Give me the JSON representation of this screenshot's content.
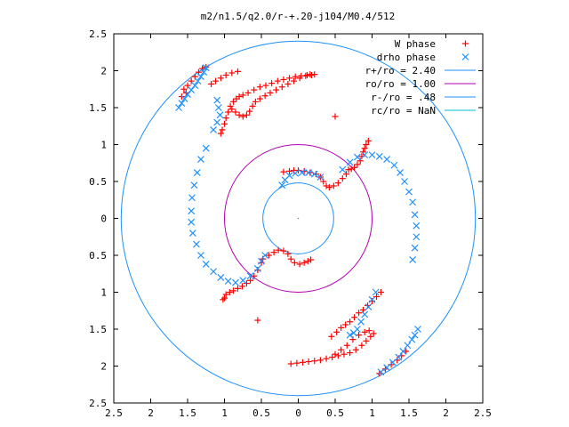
{
  "chart_data": {
    "type": "scatter",
    "title": "m2/n1.5/q2.0/r-+.20-j104/M0.4/512",
    "xlim": [
      -2.5,
      2.5
    ],
    "ylim": [
      -2.5,
      2.5
    ],
    "x_ticks": [
      -2.5,
      -2,
      -1.5,
      -1,
      -0.5,
      0,
      0.5,
      1,
      1.5,
      2,
      2.5
    ],
    "y_ticks": [
      2.5,
      2,
      1.5,
      1,
      0.5,
      0,
      -0.5,
      -1,
      -1.5,
      -2,
      -2.5
    ],
    "x_tick_labels": [
      "2.5",
      "2",
      "1.5",
      "1",
      "0.5",
      "0",
      "0.5",
      "1",
      "1.5",
      "2",
      "2.5"
    ],
    "y_tick_labels": [
      "2.5",
      "2",
      "1.5",
      "1",
      "0.5",
      "0",
      "0.5",
      "1",
      "1.5",
      "2",
      "2.5"
    ],
    "legend_position": "top-right",
    "grid": false,
    "series": [
      {
        "name": "W phase",
        "kind": "points",
        "marker": "plus",
        "color": "#ff0000",
        "points": [
          [
            -1.05,
            1.15
          ],
          [
            -1.03,
            1.2
          ],
          [
            -1.0,
            1.28
          ],
          [
            -0.98,
            1.36
          ],
          [
            -0.95,
            1.44
          ],
          [
            -0.92,
            1.52
          ],
          [
            -0.88,
            1.58
          ],
          [
            -0.84,
            1.62
          ],
          [
            -0.8,
            1.65
          ],
          [
            -0.75,
            1.67
          ],
          [
            -0.68,
            1.7
          ],
          [
            -0.6,
            1.74
          ],
          [
            -0.52,
            1.78
          ],
          [
            -0.44,
            1.8
          ],
          [
            -0.36,
            1.83
          ],
          [
            -0.28,
            1.86
          ],
          [
            -0.2,
            1.88
          ],
          [
            -0.12,
            1.9
          ],
          [
            -0.04,
            1.92
          ],
          [
            0.04,
            1.93
          ],
          [
            0.12,
            1.94
          ],
          [
            0.18,
            1.94
          ],
          [
            0.22,
            1.95
          ],
          [
            -0.9,
            1.48
          ],
          [
            -0.85,
            1.44
          ],
          [
            -0.8,
            1.4
          ],
          [
            -0.75,
            1.38
          ],
          [
            -0.7,
            1.4
          ],
          [
            -0.66,
            1.45
          ],
          [
            -0.62,
            1.52
          ],
          [
            -0.58,
            1.58
          ],
          [
            -0.52,
            1.62
          ],
          [
            -0.45,
            1.66
          ],
          [
            -0.38,
            1.7
          ],
          [
            -0.3,
            1.74
          ],
          [
            -0.22,
            1.78
          ],
          [
            -0.14,
            1.82
          ],
          [
            -0.06,
            1.86
          ],
          [
            0.02,
            1.9
          ],
          [
            0.1,
            1.93
          ],
          [
            0.16,
            1.95
          ],
          [
            -1.18,
            1.82
          ],
          [
            -1.12,
            1.86
          ],
          [
            -1.05,
            1.9
          ],
          [
            -0.98,
            1.94
          ],
          [
            -0.9,
            1.97
          ],
          [
            -0.82,
            1.99
          ],
          [
            -1.55,
            1.75
          ],
          [
            -1.5,
            1.8
          ],
          [
            -1.45,
            1.86
          ],
          [
            -1.4,
            1.92
          ],
          [
            -1.35,
            1.98
          ],
          [
            -1.3,
            2.03
          ],
          [
            -1.25,
            2.05
          ],
          [
            -1.58,
            1.65
          ],
          [
            -1.52,
            1.7
          ],
          [
            0.5,
            1.38
          ],
          [
            0.95,
            1.05
          ],
          [
            0.92,
            1.0
          ],
          [
            0.9,
            0.95
          ],
          [
            0.88,
            0.9
          ],
          [
            0.86,
            0.84
          ],
          [
            0.84,
            0.78
          ],
          [
            0.8,
            0.73
          ],
          [
            0.76,
            0.69
          ],
          [
            0.72,
            0.67
          ],
          [
            0.68,
            0.66
          ],
          [
            0.0,
            0.65
          ],
          [
            0.08,
            0.64
          ],
          [
            0.16,
            0.62
          ],
          [
            0.24,
            0.6
          ],
          [
            0.3,
            0.56
          ],
          [
            0.34,
            0.5
          ],
          [
            0.38,
            0.44
          ],
          [
            0.42,
            0.42
          ],
          [
            0.48,
            0.44
          ],
          [
            0.54,
            0.48
          ],
          [
            0.6,
            0.54
          ],
          [
            0.65,
            0.6
          ],
          [
            -0.2,
            0.63
          ],
          [
            -0.12,
            0.64
          ],
          [
            -0.06,
            0.65
          ],
          [
            -0.48,
            -0.55
          ],
          [
            -0.4,
            -0.5
          ],
          [
            -0.33,
            -0.46
          ],
          [
            -0.27,
            -0.43
          ],
          [
            -0.2,
            -0.44
          ],
          [
            -0.14,
            -0.48
          ],
          [
            -0.1,
            -0.55
          ],
          [
            -0.05,
            -0.6
          ],
          [
            0.02,
            -0.62
          ],
          [
            0.08,
            -0.6
          ],
          [
            0.13,
            -0.58
          ],
          [
            0.17,
            -0.56
          ],
          [
            -0.5,
            -0.6
          ],
          [
            -0.55,
            -0.7
          ],
          [
            -0.6,
            -0.78
          ],
          [
            -0.65,
            -0.84
          ],
          [
            -0.7,
            -0.88
          ],
          [
            -0.76,
            -0.92
          ],
          [
            -0.82,
            -0.95
          ],
          [
            -0.88,
            -0.98
          ],
          [
            -0.93,
            -1.0
          ],
          [
            -0.98,
            -1.03
          ],
          [
            -1.0,
            -1.08
          ],
          [
            -1.02,
            -1.1
          ],
          [
            -0.55,
            -1.38
          ],
          [
            -0.1,
            -1.97
          ],
          [
            -0.02,
            -1.96
          ],
          [
            0.06,
            -1.95
          ],
          [
            0.14,
            -1.94
          ],
          [
            0.22,
            -1.93
          ],
          [
            0.3,
            -1.92
          ],
          [
            0.38,
            -1.9
          ],
          [
            0.46,
            -1.88
          ],
          [
            0.54,
            -1.86
          ],
          [
            0.62,
            -1.84
          ],
          [
            0.7,
            -1.82
          ],
          [
            0.78,
            -1.78
          ],
          [
            0.86,
            -1.72
          ],
          [
            0.92,
            -1.66
          ],
          [
            0.98,
            -1.6
          ],
          [
            1.02,
            -1.56
          ],
          [
            0.5,
            -1.84
          ],
          [
            0.58,
            -1.78
          ],
          [
            0.66,
            -1.72
          ],
          [
            0.74,
            -1.64
          ],
          [
            0.82,
            -1.58
          ],
          [
            0.9,
            -1.54
          ],
          [
            0.96,
            -1.52
          ],
          [
            0.45,
            -1.6
          ],
          [
            0.52,
            -1.54
          ],
          [
            0.58,
            -1.48
          ],
          [
            0.64,
            -1.44
          ],
          [
            0.7,
            -1.4
          ],
          [
            0.76,
            -1.34
          ],
          [
            0.82,
            -1.28
          ],
          [
            0.88,
            -1.24
          ],
          [
            0.94,
            -1.18
          ],
          [
            1.0,
            -1.12
          ],
          [
            1.06,
            -1.06
          ],
          [
            1.12,
            -1.0
          ],
          [
            1.1,
            -2.1
          ],
          [
            1.18,
            -2.04
          ],
          [
            1.26,
            -1.98
          ],
          [
            1.34,
            -1.92
          ],
          [
            1.4,
            -1.86
          ],
          [
            1.46,
            -1.8
          ]
        ]
      },
      {
        "name": "drho phase",
        "kind": "points",
        "marker": "cross",
        "color": "#1e90ff",
        "points": [
          [
            -1.62,
            1.5
          ],
          [
            -1.58,
            1.56
          ],
          [
            -1.54,
            1.62
          ],
          [
            -1.5,
            1.68
          ],
          [
            -1.45,
            1.74
          ],
          [
            -1.4,
            1.8
          ],
          [
            -1.36,
            1.86
          ],
          [
            -1.32,
            1.92
          ],
          [
            -1.28,
            1.98
          ],
          [
            -1.25,
            2.04
          ],
          [
            -1.1,
            1.6
          ],
          [
            -1.08,
            1.5
          ],
          [
            -1.06,
            1.4
          ],
          [
            -1.1,
            1.3
          ],
          [
            -1.15,
            1.2
          ],
          [
            -1.25,
            0.95
          ],
          [
            -1.32,
            0.8
          ],
          [
            -1.37,
            0.62
          ],
          [
            -1.41,
            0.45
          ],
          [
            -1.44,
            0.28
          ],
          [
            -1.45,
            0.1
          ],
          [
            -1.45,
            -0.05
          ],
          [
            -1.43,
            -0.2
          ],
          [
            -1.38,
            -0.35
          ],
          [
            -1.32,
            -0.5
          ],
          [
            -1.25,
            -0.62
          ],
          [
            -1.15,
            -0.72
          ],
          [
            -1.05,
            -0.8
          ],
          [
            -0.95,
            -0.85
          ],
          [
            -0.85,
            -0.87
          ],
          [
            -0.75,
            -0.84
          ],
          [
            -0.65,
            -0.78
          ],
          [
            -0.55,
            -0.68
          ],
          [
            -0.5,
            -0.58
          ],
          [
            -0.45,
            -0.5
          ],
          [
            -0.22,
            0.45
          ],
          [
            -0.18,
            0.52
          ],
          [
            -0.12,
            0.58
          ],
          [
            -0.04,
            0.61
          ],
          [
            0.05,
            0.62
          ],
          [
            0.14,
            0.62
          ],
          [
            0.22,
            0.6
          ],
          [
            0.3,
            0.56
          ],
          [
            0.6,
            0.66
          ],
          [
            0.7,
            0.76
          ],
          [
            0.8,
            0.83
          ],
          [
            0.9,
            0.86
          ],
          [
            1.0,
            0.86
          ],
          [
            1.1,
            0.84
          ],
          [
            1.2,
            0.8
          ],
          [
            1.3,
            0.72
          ],
          [
            1.38,
            0.62
          ],
          [
            1.44,
            0.5
          ],
          [
            1.5,
            0.36
          ],
          [
            1.55,
            0.22
          ],
          [
            1.58,
            0.05
          ],
          [
            1.6,
            -0.1
          ],
          [
            1.6,
            -0.25
          ],
          [
            1.58,
            -0.4
          ],
          [
            1.55,
            -0.56
          ],
          [
            1.62,
            -1.5
          ],
          [
            1.58,
            -1.58
          ],
          [
            1.54,
            -1.64
          ],
          [
            1.48,
            -1.72
          ],
          [
            1.42,
            -1.8
          ],
          [
            1.36,
            -1.88
          ],
          [
            1.28,
            -1.95
          ],
          [
            1.2,
            -2.02
          ],
          [
            1.12,
            -2.08
          ],
          [
            1.05,
            -1.0
          ],
          [
            1.0,
            -1.1
          ],
          [
            0.95,
            -1.2
          ],
          [
            0.9,
            -1.3
          ],
          [
            0.85,
            -1.4
          ],
          [
            0.8,
            -1.5
          ],
          [
            0.75,
            -1.55
          ],
          [
            0.7,
            -1.58
          ]
        ]
      },
      {
        "name": "r+/ro = 2.40",
        "kind": "circle",
        "radius": 2.4,
        "color": "#1e90ff"
      },
      {
        "name": "ro/ro = 1.00",
        "kind": "circle",
        "radius": 1.0,
        "color": "#b000b0"
      },
      {
        "name": "r-/ro = .48",
        "kind": "circle",
        "radius": 0.48,
        "color": "#1e90ff"
      },
      {
        "name": "rc/ro = NaN",
        "kind": "circle",
        "radius": null,
        "color": "#00bcd4"
      }
    ]
  }
}
